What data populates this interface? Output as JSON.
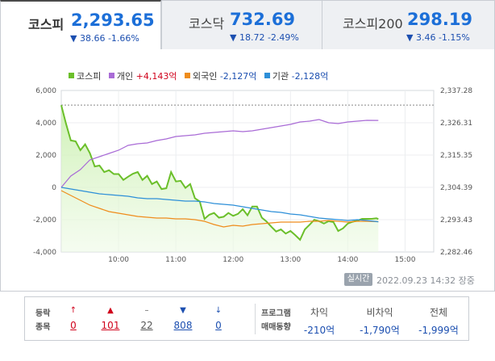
{
  "tabs": [
    {
      "name": "코스피",
      "value": "2,293.65",
      "change": "▼ 38.66  -1.66%",
      "active": true
    },
    {
      "name": "코스닥",
      "value": "732.69",
      "change": "▼ 18.72  -2.49%",
      "active": false
    },
    {
      "name": "코스피200",
      "value": "298.19",
      "change": "▼ 3.46  -1.15%",
      "active": false
    }
  ],
  "legend": [
    {
      "label": "코스피",
      "value": "",
      "color": "#6bbf2a"
    },
    {
      "label": "개인",
      "value": "+4,143억",
      "color": "#a96bd6"
    },
    {
      "label": "외국인",
      "value": "-2,127억",
      "color": "#ef8c1c"
    },
    {
      "label": "기관",
      "value": "-2,128억",
      "color": "#2d8fd8"
    }
  ],
  "chart_data": {
    "type": "line",
    "x_ticks": [
      "10:00",
      "11:00",
      "12:00",
      "13:00",
      "14:00",
      "15:00"
    ],
    "y_left_ticks": [
      "6,000",
      "4,000",
      "2,000",
      "0",
      "-2,000",
      "-4,000"
    ],
    "y_right_ticks": [
      "2,337.28",
      "2,326.31",
      "2,315.35",
      "2,304.39",
      "2,293.43",
      "2,282.46"
    ],
    "ylim_left": [
      -4000,
      6000
    ],
    "ylim_right": [
      2282.46,
      2337.28
    ],
    "xlim": [
      "09:00",
      "15:30"
    ],
    "prev_close_reference": 2332.31,
    "series": [
      {
        "name": "코스피",
        "axis": "right",
        "color": "#6bbf2a",
        "x": [
          "09:00",
          "09:05",
          "09:10",
          "09:15",
          "09:20",
          "09:25",
          "09:30",
          "09:35",
          "09:40",
          "09:45",
          "09:50",
          "09:55",
          "10:00",
          "10:05",
          "10:10",
          "10:15",
          "10:20",
          "10:25",
          "10:30",
          "10:35",
          "10:40",
          "10:45",
          "10:50",
          "10:55",
          "11:00",
          "11:05",
          "11:10",
          "11:15",
          "11:20",
          "11:25",
          "11:30",
          "11:35",
          "11:40",
          "11:45",
          "11:50",
          "11:55",
          "12:00",
          "12:05",
          "12:10",
          "12:15",
          "12:20",
          "12:25",
          "12:30",
          "12:35",
          "12:40",
          "12:45",
          "12:50",
          "12:55",
          "13:00",
          "13:05",
          "13:10",
          "13:15",
          "13:20",
          "13:25",
          "13:30",
          "13:35",
          "13:40",
          "13:45",
          "13:50",
          "13:55",
          "14:00",
          "14:05",
          "14:10",
          "14:15",
          "14:20",
          "14:25",
          "14:30",
          "14:32"
        ],
        "values": [
          2332.3,
          2326.0,
          2320.3,
          2320.0,
          2317.0,
          2319.0,
          2316.0,
          2311.5,
          2311.8,
          2309.6,
          2310.2,
          2308.9,
          2308.9,
          2306.9,
          2308.0,
          2309.0,
          2309.6,
          2306.9,
          2308.3,
          2305.5,
          2306.4,
          2303.8,
          2304.1,
          2309.6,
          2306.4,
          2306.6,
          2304.2,
          2305.5,
          2300.7,
          2299.6,
          2293.7,
          2295.1,
          2295.7,
          2294.1,
          2294.4,
          2295.7,
          2294.7,
          2295.4,
          2297.0,
          2294.9,
          2297.9,
          2297.9,
          2294.1,
          2292.8,
          2291.0,
          2289.4,
          2290.1,
          2288.7,
          2289.6,
          2288.2,
          2286.6,
          2290.1,
          2291.7,
          2293.4,
          2292.9,
          2292.1,
          2292.9,
          2292.6,
          2289.6,
          2290.5,
          2292.1,
          2292.7,
          2293.1,
          2293.7,
          2293.7,
          2293.7,
          2293.9,
          2293.65
        ]
      },
      {
        "name": "개인",
        "axis": "left",
        "color": "#a96bd6",
        "x": [
          "09:00",
          "09:10",
          "09:20",
          "09:30",
          "09:40",
          "09:50",
          "10:00",
          "10:10",
          "10:20",
          "10:30",
          "10:40",
          "10:50",
          "11:00",
          "11:10",
          "11:20",
          "11:30",
          "11:40",
          "11:50",
          "12:00",
          "12:10",
          "12:20",
          "12:30",
          "12:40",
          "12:50",
          "13:00",
          "13:10",
          "13:20",
          "13:30",
          "13:40",
          "13:50",
          "14:00",
          "14:10",
          "14:20",
          "14:32"
        ],
        "values": [
          0,
          700,
          1100,
          1700,
          1900,
          2100,
          2300,
          2600,
          2700,
          2750,
          2900,
          3000,
          3150,
          3200,
          3250,
          3350,
          3400,
          3450,
          3500,
          3450,
          3500,
          3600,
          3700,
          3800,
          3900,
          4050,
          4100,
          4200,
          4000,
          3950,
          4050,
          4100,
          4150,
          4143
        ]
      },
      {
        "name": "외국인",
        "axis": "left",
        "color": "#ef8c1c",
        "x": [
          "09:00",
          "09:10",
          "09:20",
          "09:30",
          "09:40",
          "09:50",
          "10:00",
          "10:10",
          "10:20",
          "10:30",
          "10:40",
          "10:50",
          "11:00",
          "11:10",
          "11:20",
          "11:30",
          "11:40",
          "11:50",
          "12:00",
          "12:10",
          "12:20",
          "12:30",
          "12:40",
          "12:50",
          "13:00",
          "13:10",
          "13:20",
          "13:30",
          "13:40",
          "13:50",
          "14:00",
          "14:10",
          "14:20",
          "14:32"
        ],
        "values": [
          -200,
          -500,
          -800,
          -1100,
          -1300,
          -1500,
          -1600,
          -1700,
          -1800,
          -1850,
          -1900,
          -1900,
          -1950,
          -1950,
          -2000,
          -2100,
          -2300,
          -2450,
          -2350,
          -2400,
          -2300,
          -2250,
          -2200,
          -2150,
          -2150,
          -2150,
          -2100,
          -2100,
          -2050,
          -2100,
          -2150,
          -2100,
          -2100,
          -2127
        ]
      },
      {
        "name": "기관",
        "axis": "left",
        "color": "#2d8fd8",
        "x": [
          "09:00",
          "09:10",
          "09:20",
          "09:30",
          "09:40",
          "09:50",
          "10:00",
          "10:10",
          "10:20",
          "10:30",
          "10:40",
          "10:50",
          "11:00",
          "11:10",
          "11:20",
          "11:30",
          "11:40",
          "11:50",
          "12:00",
          "12:10",
          "12:20",
          "12:30",
          "12:40",
          "12:50",
          "13:00",
          "13:10",
          "13:20",
          "13:30",
          "13:40",
          "13:50",
          "14:00",
          "14:10",
          "14:20",
          "14:32"
        ],
        "values": [
          0,
          -100,
          -200,
          -300,
          -400,
          -450,
          -500,
          -550,
          -650,
          -700,
          -700,
          -750,
          -800,
          -850,
          -850,
          -900,
          -1000,
          -1050,
          -1100,
          -1200,
          -1300,
          -1400,
          -1500,
          -1550,
          -1650,
          -1700,
          -1800,
          -1900,
          -1950,
          -2000,
          -2050,
          -2000,
          -2050,
          -2128
        ]
      }
    ]
  },
  "realtime_label": "실시간",
  "timestamp": "2022.09.23 14:32 장중",
  "breadth": {
    "label_line1": "등락",
    "label_line2": "종목",
    "items": [
      {
        "icon": "↑",
        "name": "upper-limit",
        "value": "0",
        "color": "#d0021b"
      },
      {
        "icon": "▲",
        "name": "rise",
        "value": "101",
        "color": "#d0021b"
      },
      {
        "icon": "–",
        "name": "unchanged",
        "value": "22",
        "color": "#555555"
      },
      {
        "icon": "▼",
        "name": "fall",
        "value": "808",
        "color": "#1c4fb0"
      },
      {
        "icon": "↓",
        "name": "lower-limit",
        "value": "0",
        "color": "#1c4fb0"
      }
    ]
  },
  "program": {
    "label_line1": "프로그램",
    "label_line2": "매매동향",
    "items": [
      {
        "head": "차익",
        "value": "-210억"
      },
      {
        "head": "비차익",
        "value": "-1,790억"
      },
      {
        "head": "전체",
        "value": "-1,999억"
      }
    ]
  }
}
